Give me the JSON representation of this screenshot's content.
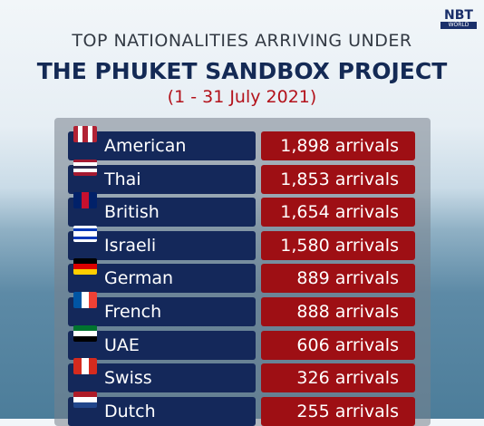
{
  "logo": {
    "name": "NBT",
    "sub": "WORLD"
  },
  "header": {
    "line1": "TOP NATIONALITIES ARRIVING UNDER",
    "line2": "THE PHUKET SANDBOX PROJECT",
    "date": "(1 - 31 July 2021)"
  },
  "table": {
    "rows": [
      [
        "American",
        "1,898 arrivals"
      ],
      [
        "Thai",
        "1,853 arrivals"
      ],
      [
        "British",
        "1,654 arrivals"
      ],
      [
        "Israeli",
        "1,580 arrivals"
      ],
      [
        "German",
        "889 arrivals"
      ],
      [
        "French",
        "888 arrivals"
      ],
      [
        "UAE",
        "606 arrivals"
      ],
      [
        "Swiss",
        "326 arrivals"
      ],
      [
        "Dutch",
        "255 arrivals"
      ]
    ]
  }
}
